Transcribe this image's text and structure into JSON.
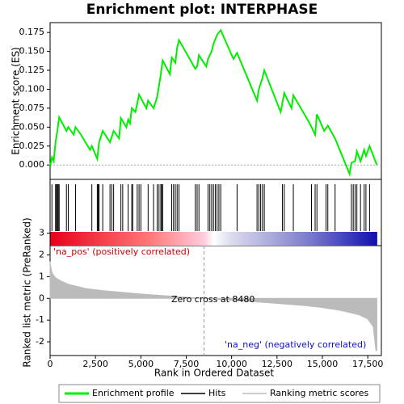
{
  "chart_data": [
    {
      "type": "line",
      "title": "Enrichment plot: INTERPHASE",
      "y_label": "Enrichment score (ES)",
      "xlim": [
        0,
        18250
      ],
      "ylim": [
        -0.019,
        0.188
      ],
      "yticks": [
        {
          "value": 0,
          "label": "0.000"
        },
        {
          "value": 0.025,
          "label": "0.025"
        },
        {
          "value": 0.05,
          "label": "0.050"
        },
        {
          "value": 0.075,
          "label": "0.075"
        },
        {
          "value": 0.1,
          "label": "0.100"
        },
        {
          "value": 0.125,
          "label": "0.125"
        },
        {
          "value": 0.15,
          "label": "0.150"
        },
        {
          "value": 0.175,
          "label": "0.175"
        }
      ],
      "series": [
        {
          "name": "Enrichment profile",
          "color": "#00ee00",
          "x": [
            0,
            100,
            200,
            300,
            400,
            500,
            900,
            1000,
            1300,
            1400,
            1700,
            2200,
            2300,
            2600,
            2700,
            2900,
            3300,
            3500,
            3800,
            3900,
            4200,
            4300,
            4400,
            4500,
            4700,
            4900,
            5300,
            5400,
            5700,
            5900,
            6000,
            6100,
            6200,
            6600,
            6700,
            6900,
            7000,
            7100,
            8000,
            8100,
            8200,
            8600,
            8700,
            8900,
            9000,
            9200,
            9400,
            10100,
            10300,
            11400,
            11500,
            11700,
            11800,
            12700,
            12900,
            13300,
            13400,
            14300,
            14600,
            14700,
            15100,
            15300,
            15700,
            16500,
            16600,
            16800,
            16900,
            17100,
            17300,
            17400,
            17600,
            18000
          ],
          "values": [
            -0.002,
            0.01,
            0.005,
            0.03,
            0.045,
            0.063,
            0.045,
            0.05,
            0.04,
            0.05,
            0.04,
            0.02,
            0.025,
            0.008,
            0.03,
            0.045,
            0.03,
            0.045,
            0.035,
            0.062,
            0.05,
            0.06,
            0.055,
            0.075,
            0.07,
            0.093,
            0.075,
            0.085,
            0.075,
            0.09,
            0.105,
            0.12,
            0.138,
            0.12,
            0.142,
            0.135,
            0.155,
            0.165,
            0.127,
            0.13,
            0.145,
            0.13,
            0.14,
            0.15,
            0.16,
            0.172,
            0.178,
            0.14,
            0.148,
            0.085,
            0.1,
            0.115,
            0.125,
            0.07,
            0.095,
            0.075,
            0.092,
            0.055,
            0.04,
            0.067,
            0.045,
            0.052,
            0.035,
            -0.012,
            0.003,
            0.005,
            0.018,
            0.005,
            0.02,
            0.012,
            0.025,
            0.0
          ]
        }
      ]
    },
    {
      "type": "hits",
      "xlim": [
        0,
        18250
      ],
      "series": [
        {
          "name": "Hits",
          "color": "#000000",
          "values": [
            100,
            300,
            350,
            400,
            450,
            500,
            900,
            1000,
            1400,
            2300,
            2600,
            2650,
            2700,
            2900,
            3300,
            3400,
            3500,
            3900,
            4000,
            4300,
            4500,
            4550,
            4800,
            4900,
            5000,
            5400,
            5700,
            5900,
            6000,
            6100,
            6150,
            6200,
            6700,
            6800,
            6900,
            7000,
            7100,
            8000,
            8100,
            8200,
            8700,
            8800,
            8900,
            9000,
            9100,
            9200,
            9300,
            9400,
            10300,
            11400,
            11500,
            11600,
            11700,
            11800,
            12800,
            12900,
            13400,
            14400,
            14600,
            14700,
            15200,
            15300,
            15700,
            16600,
            16700,
            16800,
            16900,
            17100,
            17300,
            17400,
            17600
          ]
        }
      ]
    },
    {
      "type": "area",
      "x_label": "Rank in Ordered Dataset",
      "y_label": "Ranked list metric (PreRanked)",
      "xlim": [
        0,
        18250
      ],
      "ylim": [
        -2.63,
        3.21
      ],
      "xticks": [
        0,
        {
          "value": 2500,
          "label": "2,500"
        },
        {
          "value": 5000,
          "label": "5,000"
        },
        {
          "value": 7500,
          "label": "7,500"
        },
        {
          "value": 10000,
          "label": "10,000"
        },
        {
          "value": 12500,
          "label": "12,500"
        },
        {
          "value": 15000,
          "label": "15,000"
        },
        {
          "value": 17500,
          "label": "17,500"
        }
      ],
      "yticks": [
        3,
        2,
        1,
        0,
        -1,
        -2
      ],
      "zero_cross": 8480,
      "annotations": [
        "'na_pos' (positively correlated)",
        "Zero cross at 8480",
        "'na_neg' (negatively correlated)"
      ],
      "series": [
        {
          "name": "Ranking metric scores",
          "color": "#bbbbbb",
          "x": [
            0,
            50,
            100,
            200,
            300,
            600,
            1000,
            2000,
            3000,
            5000,
            7000,
            8480,
            10000,
            12000,
            14000,
            15000,
            16000,
            17000,
            17500,
            17800,
            17950,
            18000
          ],
          "values": [
            1.7,
            1.4,
            1.2,
            1.05,
            0.95,
            0.8,
            0.65,
            0.45,
            0.35,
            0.2,
            0.08,
            0,
            -0.08,
            -0.2,
            -0.33,
            -0.42,
            -0.55,
            -0.75,
            -0.95,
            -1.3,
            -2.4,
            -2.4
          ]
        }
      ]
    }
  ]
}
